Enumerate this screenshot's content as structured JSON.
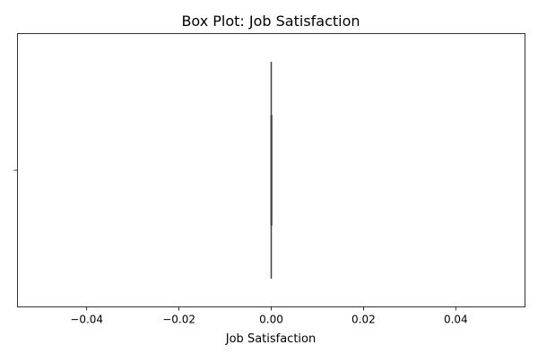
{
  "chart_data": {
    "type": "box",
    "title": "Box Plot: Job Satisfaction",
    "xlabel": "Job Satisfaction",
    "ylabel": "",
    "orientation": "horizontal",
    "xlim": [
      -0.055,
      0.055
    ],
    "x_ticks": [
      -0.04,
      -0.02,
      0.0,
      0.02,
      0.04
    ],
    "x_tick_labels": [
      "−0.04",
      "−0.02",
      "0.00",
      "0.02",
      "0.04"
    ],
    "y_tick_labels": [
      ""
    ],
    "grid": false,
    "series": [
      {
        "values_summary": {
          "min": 0.0,
          "q1": 0.0,
          "median": 0.0,
          "q3": 0.0,
          "max": 0.0
        }
      }
    ],
    "colors": {
      "box_edge": "#3f3f3f",
      "axes": "#000000"
    }
  }
}
